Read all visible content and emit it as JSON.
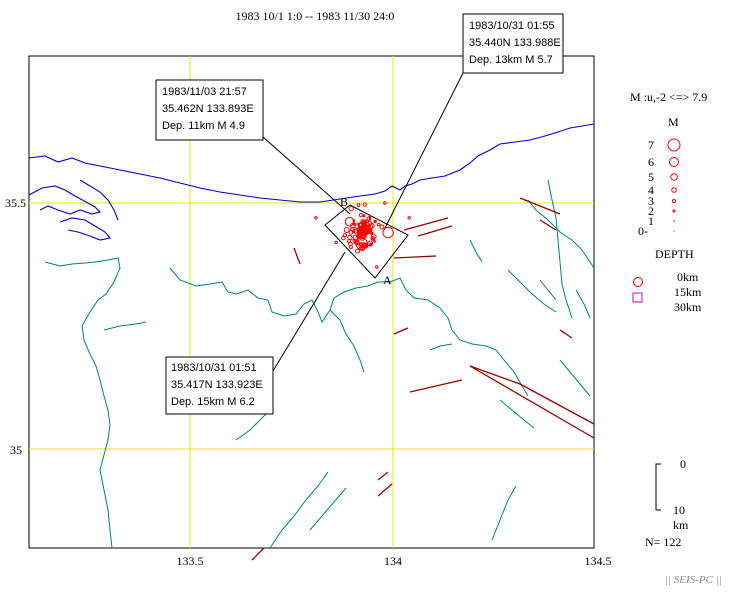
{
  "title": "1983 10/1 1:0 -- 1983 11/30 24:0",
  "axes": {
    "lon_ticks": [
      "133.5",
      "134",
      "134.5"
    ],
    "lat_ticks": [
      "35.5",
      "35"
    ]
  },
  "callouts": [
    {
      "line1": "1983/10/31 01:55",
      "line2": "35.440N  133.988E",
      "line3": "Dep. 13km    M 5.7"
    },
    {
      "line1": "1983/11/03 21:57",
      "line2": "35.462N  133.893E",
      "line3": "Dep. 11km    M 4.9"
    },
    {
      "line1": "1983/10/31 01:51",
      "line2": "35.417N  133.923E",
      "line3": "Dep. 15km    M 6.2"
    }
  ],
  "section_labels": {
    "a": "A",
    "b": "B"
  },
  "legend": {
    "mag_range": "M :u,-2 <=> 7.9",
    "mag_title": "M",
    "mag_items": [
      "7",
      "6",
      "5",
      "4",
      "3",
      "2",
      "1",
      "0-"
    ],
    "depth_title": "DEPTH",
    "depth_items": [
      "0km",
      "15km",
      "30km"
    ],
    "scale_top": "0",
    "scale_bottom": "10",
    "scale_unit": "km",
    "count": "N= 122"
  },
  "credit": "|| SEIS-PC ||",
  "colors": {
    "grid": "#e8e800",
    "coast": "#0000cc",
    "prefecture": "#008080",
    "fault": "#990000",
    "quake": "#ff0000",
    "deep_square": "#cc00cc"
  },
  "map_data": {
    "lon_range": [
      133.0,
      134.5
    ],
    "lat_range": [
      34.8,
      35.8
    ],
    "events_label": "epicenters",
    "mainshocks": [
      {
        "lat": 35.44,
        "lon": 133.988,
        "depth_km": 13,
        "mag": 5.7
      },
      {
        "lat": 35.462,
        "lon": 133.893,
        "depth_km": 11,
        "mag": 4.9
      },
      {
        "lat": 35.417,
        "lon": 133.923,
        "depth_km": 15,
        "mag": 6.2
      }
    ]
  }
}
